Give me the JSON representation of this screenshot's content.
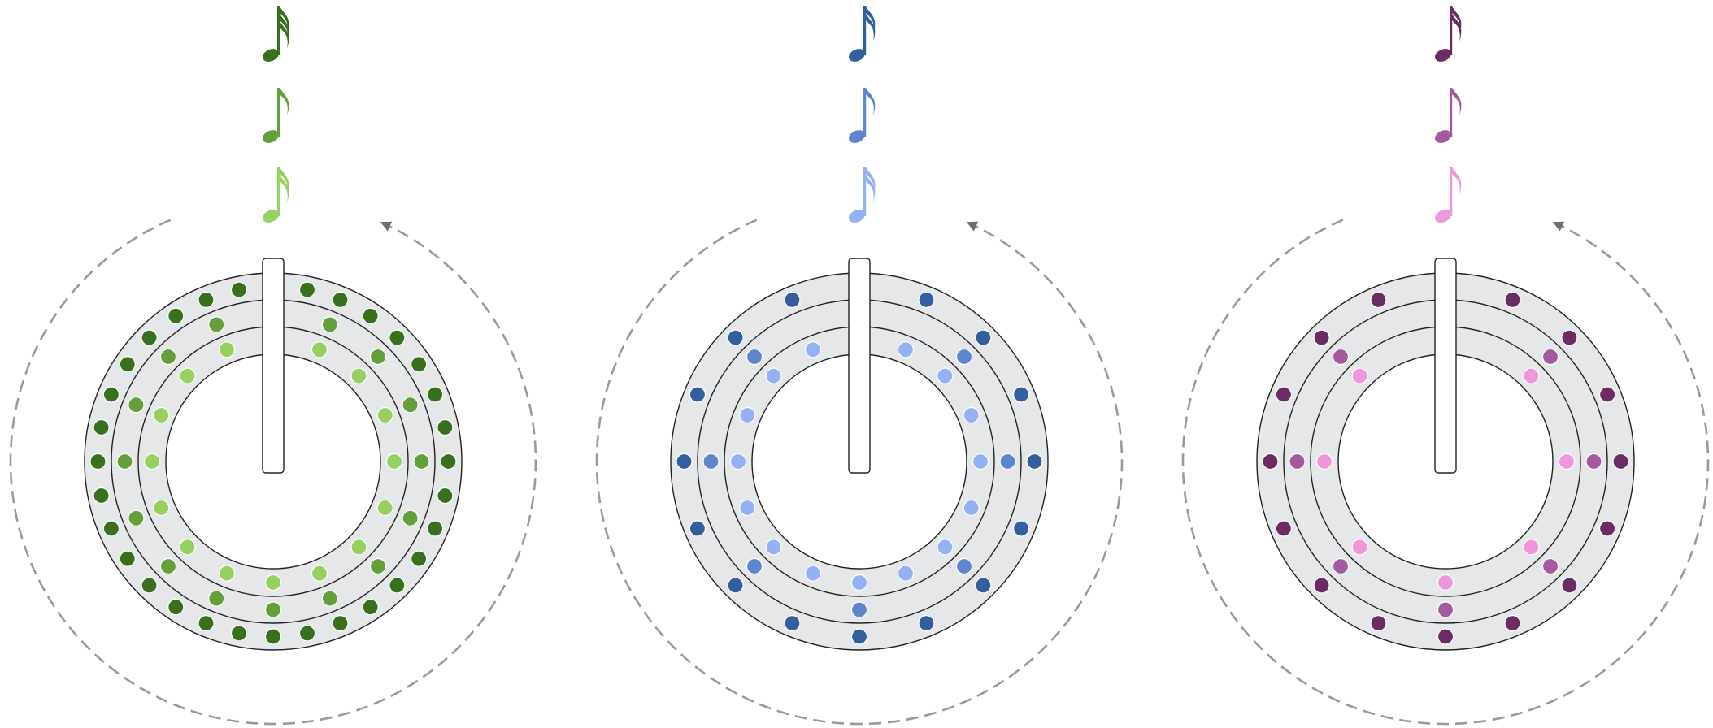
{
  "diagram": {
    "description_free": true,
    "note_symbols": [
      "thirty-second-note",
      "eighth-note",
      "sixteenth-note"
    ],
    "wheels": [
      {
        "name": "green",
        "colors": {
          "outer": "#38701f",
          "middle": "#64a03a",
          "inner": "#96d060"
        },
        "rings": {
          "outer": {
            "count": 32,
            "missing": [
              0
            ]
          },
          "middle": {
            "count": 16,
            "missing": [
              0
            ]
          },
          "inner": {
            "count": 16,
            "missing": [
              0
            ]
          }
        },
        "notes": [
          {
            "ring": "outer",
            "symbol": "thirty-second-note"
          },
          {
            "ring": "middle",
            "symbol": "eighth-note"
          },
          {
            "ring": "inner",
            "symbol": "sixteenth-note"
          }
        ]
      },
      {
        "name": "blue",
        "colors": {
          "outer": "#335f9e",
          "middle": "#5f86cc",
          "inner": "#93b1f3"
        },
        "rings": {
          "outer": {
            "count": 16,
            "missing": [
              0
            ]
          },
          "middle": {
            "count": 8,
            "missing": [
              0
            ]
          },
          "inner": {
            "count": 16,
            "missing": [
              0
            ]
          }
        },
        "notes": [
          {
            "ring": "outer",
            "symbol": "sixteenth-note"
          },
          {
            "ring": "middle",
            "symbol": "eighth-note"
          },
          {
            "ring": "inner",
            "symbol": "sixteenth-note"
          }
        ]
      },
      {
        "name": "purple",
        "colors": {
          "outer": "#6b2b63",
          "middle": "#a45a9e",
          "inner": "#f097db"
        },
        "rings": {
          "outer": {
            "count": 16,
            "missing": [
              0
            ]
          },
          "middle": {
            "count": 8,
            "missing": [
              0
            ]
          },
          "inner": {
            "count": 8,
            "missing": [
              0
            ]
          }
        },
        "notes": [
          {
            "ring": "outer",
            "symbol": "sixteenth-note"
          },
          {
            "ring": "middle",
            "symbol": "eighth-note"
          },
          {
            "ring": "inner",
            "symbol": "eighth-note"
          }
        ]
      }
    ],
    "style": {
      "ring_fill": "#e6e7e9",
      "line_color": "#222222",
      "arrow_color": "#9a9a9a",
      "arrow_head_color": "#6f6f6f",
      "background": "#ffffff"
    }
  }
}
